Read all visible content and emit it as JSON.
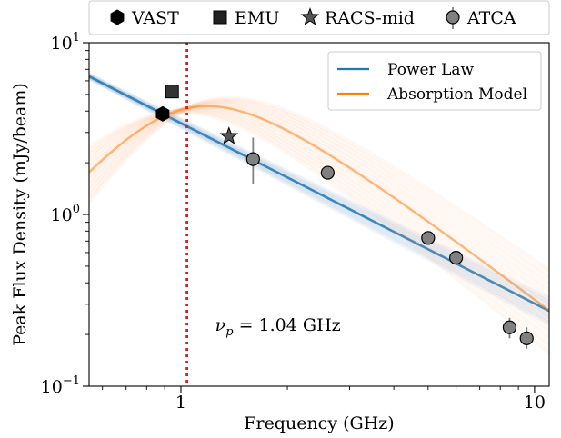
{
  "chart_data": {
    "type": "scatter",
    "xlabel": "Frequency (GHz)",
    "ylabel": "Peak Flux Density (mJy/beam)",
    "x_scale": "log",
    "y_scale": "log",
    "xlim": [
      0.55,
      11.0
    ],
    "ylim": [
      0.1,
      10.0
    ],
    "x_ticks": [
      {
        "value": 1,
        "label": "1"
      },
      {
        "value": 10,
        "label": "10"
      }
    ],
    "y_ticks": [
      {
        "value": 0.1,
        "base": "10",
        "exp": "−1"
      },
      {
        "value": 1,
        "base": "10",
        "exp": "0"
      },
      {
        "value": 10,
        "base": "10",
        "exp": "1"
      }
    ],
    "grid": false,
    "top_legend": {
      "placement": "top-outside",
      "entries": [
        {
          "label": "VAST",
          "marker": "hexagon"
        },
        {
          "label": "EMU",
          "marker": "square"
        },
        {
          "label": "RACS-mid",
          "marker": "star"
        },
        {
          "label": "ATCA",
          "marker": "circle"
        }
      ]
    },
    "model_legend": {
      "placement": "top-right",
      "entries": [
        {
          "label": "Power Law",
          "color": "#1f77b4"
        },
        {
          "label": "Absorption Model",
          "color": "#ff7f0e"
        }
      ]
    },
    "annotation": {
      "symbol": "ν",
      "subscript": "p",
      "text": " = 1.04 GHz",
      "x": 1.25,
      "y": 0.21
    },
    "peak_line": {
      "x": 1.04,
      "color": "#e41a1c"
    },
    "series": [
      {
        "name": "VAST",
        "marker": "hexagon",
        "color": "#000000",
        "points": [
          {
            "x": 0.888,
            "y": 3.85
          }
        ]
      },
      {
        "name": "EMU",
        "marker": "square",
        "color": "#333333",
        "points": [
          {
            "x": 0.944,
            "y": 5.2
          }
        ]
      },
      {
        "name": "RACS-mid",
        "marker": "star",
        "color": "#555555",
        "points": [
          {
            "x": 1.3675,
            "y": 2.85
          }
        ]
      },
      {
        "name": "ATCA",
        "marker": "circle",
        "color": "#808080",
        "points": [
          {
            "x": 1.6,
            "y": 2.1,
            "yerr_lo": 0.6,
            "yerr_hi": 0.7
          },
          {
            "x": 2.6,
            "y": 1.75,
            "yerr_lo": 0.15,
            "yerr_hi": 0.15
          },
          {
            "x": 5.0,
            "y": 0.73,
            "yerr_lo": 0.05,
            "yerr_hi": 0.05
          },
          {
            "x": 6.0,
            "y": 0.56,
            "yerr_lo": 0.04,
            "yerr_hi": 0.04
          },
          {
            "x": 8.5,
            "y": 0.22,
            "yerr_lo": 0.03,
            "yerr_hi": 0.03
          },
          {
            "x": 9.5,
            "y": 0.19,
            "yerr_lo": 0.025,
            "yerr_hi": 0.03
          }
        ]
      }
    ],
    "models": {
      "power_law": {
        "color": "#1f77b4",
        "amplitude_at_1GHz": 3.4,
        "index": -1.05
      },
      "absorption": {
        "color": "#ff7f0e",
        "peak_freq": 1.04,
        "peak_flux": 4.15,
        "thick_index": 2.5,
        "thin_index": -1.6
      }
    }
  }
}
